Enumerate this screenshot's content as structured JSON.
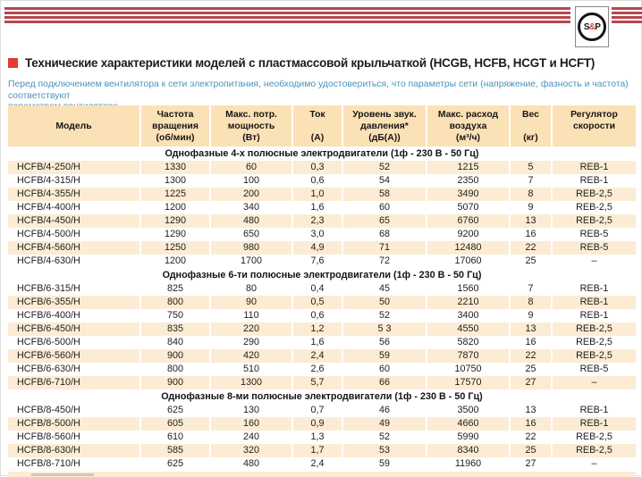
{
  "logo": {
    "part1": "S",
    "part2": "&",
    "part3": "P"
  },
  "header": {
    "title": "Технические характеристики моделей с пластмассовой крыльчаткой (HCGB, HCFB, HCGT и HCFT)",
    "intro_lines": [
      "Перед подключением вентилятора к сети электропитания, необходимо удостовериться, что параметры сети (напряжение, фазность и частота) соответствуют",
      "параметрам вентилятора."
    ]
  },
  "colors": {
    "banner_red": "#b5484f",
    "bullet_red": "#e23b33",
    "header_bg": "#fbe1b6",
    "row_shaded_bg": "#fcecd4",
    "intro_blue": "#4d92bb"
  },
  "table": {
    "columns": [
      {
        "id": "model",
        "lines": [
          "Модель"
        ]
      },
      {
        "id": "rpm",
        "lines": [
          "Частота",
          "вращения",
          "(об/мин)"
        ]
      },
      {
        "id": "power",
        "lines": [
          "Макс. потр.",
          "мощность",
          "(Вт)"
        ]
      },
      {
        "id": "current",
        "lines": [
          "Ток",
          "",
          "(А)"
        ]
      },
      {
        "id": "noise",
        "lines": [
          "Уровень звук.",
          "давления*",
          "(дБ(А))"
        ]
      },
      {
        "id": "airflow",
        "lines": [
          "Макс. расход",
          "воздуха",
          "(м³/ч)"
        ]
      },
      {
        "id": "weight",
        "lines": [
          "Вес",
          "",
          "(кг)"
        ]
      },
      {
        "id": "regulator",
        "lines": [
          "Регулятор",
          "скорости"
        ]
      }
    ],
    "sections": [
      {
        "title": "Однофазные 4-х полюсные электродвигатели (1ф - 230 В - 50 Гц)",
        "zebra_start": "shaded",
        "rows": [
          [
            "HCFB/4-250/H",
            "1330",
            "60",
            "0,3",
            "52",
            "1215",
            "5",
            "REB-1"
          ],
          [
            "HCFB/4-315/H",
            "1300",
            "100",
            "0,6",
            "54",
            "2350",
            "7",
            "REB-1"
          ],
          [
            "HCFB/4-355/H",
            "1225",
            "200",
            "1,0",
            "58",
            "3490",
            "8",
            "REB-2,5"
          ],
          [
            "HCFB/4-400/H",
            "1200",
            "340",
            "1,6",
            "60",
            "5070",
            "9",
            "REB-2,5"
          ],
          [
            "HCFB/4-450/H",
            "1290",
            "480",
            "2,3",
            "65",
            "6760",
            "13",
            "REB-2,5"
          ],
          [
            "HCFB/4-500/H",
            "1290",
            "650",
            "3,0",
            "68",
            "9200",
            "16",
            "REB-5"
          ],
          [
            "HCFB/4-560/H",
            "1250",
            "980",
            "4,9",
            "71",
            "12480",
            "22",
            "REB-5"
          ],
          [
            "HCFB/4-630/H",
            "1200",
            "1700",
            "7,6",
            "72",
            "17060",
            "25",
            "–"
          ]
        ]
      },
      {
        "title": "Однофазные 6-ти полюсные электродвигатели (1ф - 230 В - 50 Гц)",
        "zebra_start": "plain",
        "rows": [
          [
            "HCFB/6-315/H",
            "825",
            "80",
            "0,4",
            "45",
            "1560",
            "7",
            "REB-1"
          ],
          [
            "HCFB/6-355/H",
            "800",
            "90",
            "0,5",
            "50",
            "2210",
            "8",
            "REB-1"
          ],
          [
            "HCFB/6-400/H",
            "750",
            "110",
            "0,6",
            "52",
            "3400",
            "9",
            "REB-1"
          ],
          [
            "HCFB/6-450/H",
            "835",
            "220",
            "1,2",
            "5 3",
            "4550",
            "13",
            "REB-2,5"
          ],
          [
            "HCFB/6-500/H",
            "840",
            "290",
            "1,6",
            "56",
            "5820",
            "16",
            "REB-2,5"
          ],
          [
            "HCFB/6-560/H",
            "900",
            "420",
            "2,4",
            "59",
            "7870",
            "22",
            "REB-2,5"
          ],
          [
            "HCFB/6-630/H",
            "800",
            "510",
            "2,6",
            "60",
            "10750",
            "25",
            "REB-5"
          ],
          [
            "HCFB/6-710/H",
            "900",
            "1300",
            "5,7",
            "66",
            "17570",
            "27",
            "–"
          ]
        ]
      },
      {
        "title": "Однофазные 8-ми полюсные электродвигатели (1ф - 230 В - 50 Гц)",
        "zebra_start": "plain",
        "rows": [
          [
            "HCFB/8-450/H",
            "625",
            "130",
            "0,7",
            "46",
            "3500",
            "13",
            "REB-1"
          ],
          [
            "HCFB/8-500/H",
            "605",
            "160",
            "0,9",
            "49",
            "4660",
            "16",
            "REB-1"
          ],
          [
            "HCFB/8-560/H",
            "610",
            "240",
            "1,3",
            "52",
            "5990",
            "22",
            "REB-2,5"
          ],
          [
            "HCFB/8-630/H",
            "585",
            "320",
            "1,7",
            "53",
            "8340",
            "25",
            "REB-2,5"
          ],
          [
            "HCFB/8-710/H",
            "625",
            "480",
            "2,4",
            "59",
            "11960",
            "27",
            "–"
          ]
        ]
      }
    ]
  }
}
